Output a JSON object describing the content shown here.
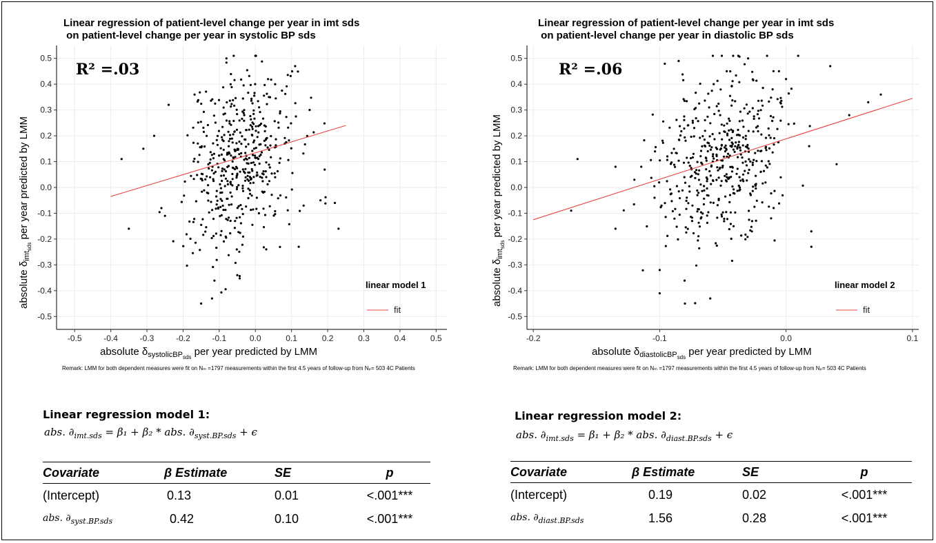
{
  "remark": "Remark: LMM for both dependent measures were fit on Nₘ =1797 measurements within the first 4.5 years of follow-up from Nₚ= 503 4C Patients",
  "chart_data": [
    {
      "type": "scatter",
      "title_line1": "Linear regression of patient-level change per year in imt sds",
      "title_line2": " on patient-level change per year in systolic BP sds",
      "xlabel_prefix": "absolute δ",
      "xlabel_sub": "systolicBP",
      "xlabel_subsub": "sds",
      "xlabel_suffix": " per year predicted by LMM",
      "ylabel_prefix": "absolute δ",
      "ylabel_sub": "imt",
      "ylabel_subsub": "sds",
      "ylabel_suffix": " per year predicted by LMM",
      "xlim": [
        -0.55,
        0.53
      ],
      "ylim": [
        -0.55,
        0.55
      ],
      "xticks": [
        -0.5,
        -0.4,
        -0.3,
        -0.2,
        -0.1,
        0.0,
        0.1,
        0.2,
        0.3,
        0.4,
        0.5
      ],
      "yticks": [
        -0.5,
        -0.4,
        -0.3,
        -0.2,
        -0.1,
        0.0,
        0.1,
        0.2,
        0.3,
        0.4,
        0.5
      ],
      "r2_label": "R² =.03",
      "legend_title": "linear model 1",
      "legend_entry": "fit",
      "fit_color": "#e8423f",
      "fit_line": {
        "x": [
          -0.4,
          0.25
        ],
        "y": [
          -0.035,
          0.24
        ]
      },
      "seed": 7,
      "n_points": 500,
      "x_center": -0.04,
      "x_spread": 0.075,
      "y_base": 0.115,
      "y_slope": 0.42,
      "y_spread": 0.17,
      "points": [
        [
          -0.37,
          0.11
        ],
        [
          -0.35,
          -0.16
        ],
        [
          -0.31,
          0.15
        ],
        [
          -0.28,
          0.2
        ],
        [
          -0.24,
          0.32
        ],
        [
          -0.25,
          -0.11
        ],
        [
          -0.26,
          -0.08
        ],
        [
          0.22,
          -0.06
        ],
        [
          0.23,
          -0.16
        ],
        [
          0.18,
          -0.05
        ],
        [
          -0.15,
          -0.45
        ],
        [
          -0.12,
          -0.43
        ],
        [
          -0.08,
          0.5
        ],
        [
          -0.06,
          0.51
        ],
        [
          0.0,
          0.51
        ],
        [
          0.11,
          0.47
        ],
        [
          0.15,
          0.3
        ],
        [
          0.12,
          -0.23
        ],
        [
          0.03,
          -0.24
        ],
        [
          -0.05,
          -0.34
        ]
      ]
    },
    {
      "type": "scatter",
      "title_line1": "Linear regression of patient-level change per year in imt sds",
      "title_line2": " on patient-level change per year in diastolic BP sds",
      "xlabel_prefix": "absolute δ",
      "xlabel_sub": "diastolicBP",
      "xlabel_subsub": "sds",
      "xlabel_suffix": " per year predicted by LMM",
      "ylabel_prefix": "absolute δ",
      "ylabel_sub": "imt",
      "ylabel_subsub": "sds",
      "ylabel_suffix": " per year predicted by LMM",
      "xlim": [
        -0.205,
        0.105
      ],
      "ylim": [
        -0.55,
        0.55
      ],
      "xticks": [
        -0.2,
        -0.1,
        0.0,
        0.1
      ],
      "yticks": [
        -0.5,
        -0.4,
        -0.3,
        -0.2,
        -0.1,
        0.0,
        0.1,
        0.2,
        0.3,
        0.4,
        0.5
      ],
      "r2_label": "R² =.06",
      "legend_title": "linear model 2",
      "legend_entry": "fit",
      "fit_color": "#e8423f",
      "fit_line": {
        "x": [
          -0.2,
          0.1
        ],
        "y": [
          -0.125,
          0.345
        ]
      },
      "seed": 13,
      "n_points": 500,
      "x_center": -0.05,
      "x_spread": 0.027,
      "y_base": 0.19,
      "y_slope": 1.56,
      "y_spread": 0.16,
      "points": [
        [
          -0.165,
          0.11
        ],
        [
          -0.17,
          -0.09
        ],
        [
          -0.135,
          0.08
        ],
        [
          -0.135,
          -0.16
        ],
        [
          -0.12,
          0.03
        ],
        [
          0.075,
          0.36
        ],
        [
          0.065,
          0.33
        ],
        [
          0.05,
          0.28
        ],
        [
          0.035,
          0.47
        ],
        [
          0.04,
          0.09
        ],
        [
          -0.1,
          -0.41
        ],
        [
          -0.06,
          -0.43
        ],
        [
          -0.08,
          -0.45
        ],
        [
          -0.1,
          -0.32
        ],
        [
          -0.085,
          0.49
        ],
        [
          -0.03,
          0.5
        ],
        [
          -0.015,
          0.51
        ],
        [
          0.0,
          0.42
        ],
        [
          0.02,
          -0.23
        ],
        [
          0.02,
          -0.17
        ]
      ]
    }
  ],
  "models": [
    {
      "title": "Linear regression model 1:",
      "formula_lhs": "abs. ∂",
      "formula_lhs_sub": "imt.sds",
      "formula_mid": " = β₁ + β₂ * abs. ∂",
      "formula_rhs_sub": "syst.BP.sds",
      "formula_tail": " + ϵ",
      "headers": [
        "Covariate",
        "β Estimate",
        "SE",
        "p"
      ],
      "rows": [
        {
          "cov": "(Intercept)",
          "cov_sub": "",
          "est": "0.13",
          "se": "0.01",
          "p": "<.001***"
        },
        {
          "cov": "abs. ∂",
          "cov_sub": "syst.BP.sds",
          "est": "0.42",
          "se": "0.10",
          "p": "<.001***"
        }
      ]
    },
    {
      "title": "Linear regression model 2:",
      "formula_lhs": "abs. ∂",
      "formula_lhs_sub": "imt.sds",
      "formula_mid": " = β₁ + β₂ * abs. ∂",
      "formula_rhs_sub": "diast.BP.sds",
      "formula_tail": " + ϵ",
      "headers": [
        "Covariate",
        "β Estimate",
        "SE",
        "p"
      ],
      "rows": [
        {
          "cov": "(Intercept)",
          "cov_sub": "",
          "est": "0.19",
          "se": "0.02",
          "p": "<.001***"
        },
        {
          "cov": "abs. ∂",
          "cov_sub": "diast.BP.sds",
          "est": "1.56",
          "se": "0.28",
          "p": "<.001***"
        }
      ]
    }
  ]
}
